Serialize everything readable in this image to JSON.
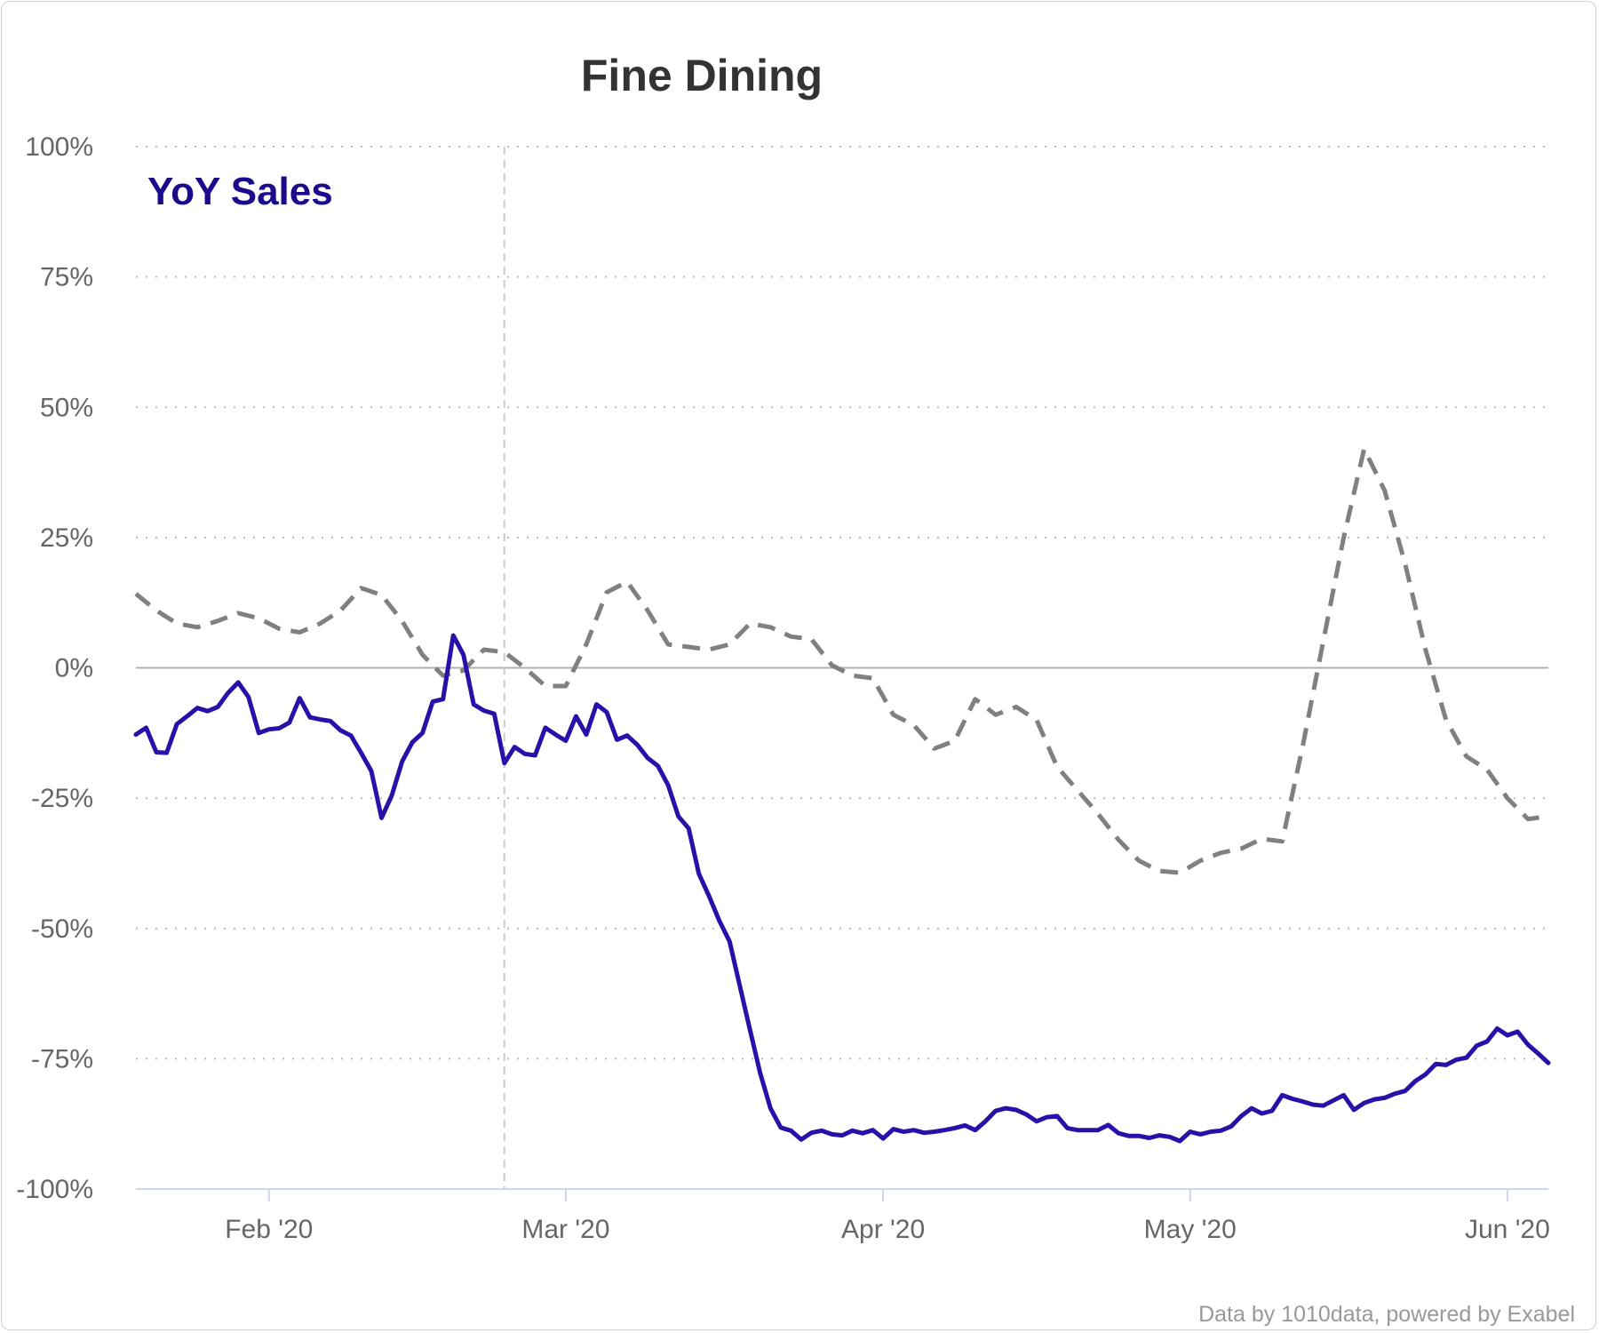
{
  "chart_data": {
    "type": "line",
    "title": "Fine Dining",
    "annotation": "YoY Sales",
    "credit": "Data by 1010data, powered by Exabel",
    "ylim": [
      -100,
      100
    ],
    "yticks": [
      100,
      75,
      50,
      25,
      0,
      -25,
      -50,
      -75,
      -100
    ],
    "ytick_labels": [
      "100%",
      "75%",
      "50%",
      "25%",
      "0%",
      "-25%",
      "-50%",
      "-75%",
      "-100%"
    ],
    "xticks": [
      "2020-02-01",
      "2020-03-01",
      "2020-04-01",
      "2020-05-01",
      "2020-06-01"
    ],
    "xtick_labels": [
      "Feb '20",
      "Mar '20",
      "Apr '20",
      "May '20",
      "Jun '20"
    ],
    "xlim": [
      "2020-01-19",
      "2020-06-05"
    ],
    "grid": "horizontal dotted",
    "reference_line_date": "2020-02-24",
    "colors": {
      "series_primary": "#2a0fa8",
      "series_secondary": "#808080",
      "grid": "#bbbbbb",
      "zero_line": "#b0b0b0",
      "reference_line": "#cccccc",
      "axis": "#ccd6eb",
      "label_color": "#1a0a8c"
    },
    "series": [
      {
        "style": "solid",
        "points": [
          [
            "2020-01-19",
            -12.8
          ],
          [
            "2020-01-20",
            -11.5
          ],
          [
            "2020-01-21",
            -16.2
          ],
          [
            "2020-01-22",
            -16.3
          ],
          [
            "2020-01-23",
            -10.8
          ],
          [
            "2020-01-24",
            -9.3
          ],
          [
            "2020-01-25",
            -7.7
          ],
          [
            "2020-01-26",
            -8.3
          ],
          [
            "2020-01-27",
            -7.5
          ],
          [
            "2020-01-28",
            -4.8
          ],
          [
            "2020-01-29",
            -2.8
          ],
          [
            "2020-01-30",
            -5.6
          ],
          [
            "2020-01-31",
            -12.5
          ],
          [
            "2020-02-01",
            -11.8
          ],
          [
            "2020-02-02",
            -11.6
          ],
          [
            "2020-02-03",
            -10.5
          ],
          [
            "2020-02-04",
            -5.8
          ],
          [
            "2020-02-05",
            -9.5
          ],
          [
            "2020-02-06",
            -9.9
          ],
          [
            "2020-02-07",
            -10.2
          ],
          [
            "2020-02-08",
            -12
          ],
          [
            "2020-02-09",
            -13
          ],
          [
            "2020-02-10",
            -16.3
          ],
          [
            "2020-02-11",
            -19.8
          ],
          [
            "2020-02-12",
            -28.8
          ],
          [
            "2020-02-13",
            -24.5
          ],
          [
            "2020-02-14",
            -18
          ],
          [
            "2020-02-15",
            -14.3
          ],
          [
            "2020-02-16",
            -12.5
          ],
          [
            "2020-02-17",
            -6.5
          ],
          [
            "2020-02-18",
            -6
          ],
          [
            "2020-02-19",
            6.2
          ],
          [
            "2020-02-20",
            2.5
          ],
          [
            "2020-02-21",
            -7
          ],
          [
            "2020-02-22",
            -8.2
          ],
          [
            "2020-02-23",
            -8.8
          ],
          [
            "2020-02-24",
            -18.3
          ],
          [
            "2020-02-25",
            -15.2
          ],
          [
            "2020-02-26",
            -16.5
          ],
          [
            "2020-02-27",
            -16.8
          ],
          [
            "2020-02-28",
            -11.5
          ],
          [
            "2020-02-29",
            -12.8
          ],
          [
            "2020-03-01",
            -14
          ],
          [
            "2020-03-02",
            -9.3
          ],
          [
            "2020-03-03",
            -12.8
          ],
          [
            "2020-03-04",
            -7
          ],
          [
            "2020-03-05",
            -8.5
          ],
          [
            "2020-03-06",
            -13.8
          ],
          [
            "2020-03-07",
            -13
          ],
          [
            "2020-03-08",
            -14.8
          ],
          [
            "2020-03-09",
            -17.3
          ],
          [
            "2020-03-10",
            -18.8
          ],
          [
            "2020-03-11",
            -22.5
          ],
          [
            "2020-03-12",
            -28.5
          ],
          [
            "2020-03-13",
            -30.8
          ],
          [
            "2020-03-14",
            -39.5
          ],
          [
            "2020-03-15",
            -43.8
          ],
          [
            "2020-03-16",
            -48.5
          ],
          [
            "2020-03-17",
            -52.5
          ],
          [
            "2020-03-18",
            -61
          ],
          [
            "2020-03-19",
            -69.5
          ],
          [
            "2020-03-20",
            -77.8
          ],
          [
            "2020-03-21",
            -84.5
          ],
          [
            "2020-03-22",
            -88.2
          ],
          [
            "2020-03-23",
            -88.8
          ],
          [
            "2020-03-24",
            -90.5
          ],
          [
            "2020-03-25",
            -89.2
          ],
          [
            "2020-03-26",
            -88.8
          ],
          [
            "2020-03-27",
            -89.5
          ],
          [
            "2020-03-28",
            -89.7
          ],
          [
            "2020-03-29",
            -88.8
          ],
          [
            "2020-03-30",
            -89.3
          ],
          [
            "2020-03-31",
            -88.7
          ],
          [
            "2020-04-01",
            -90.3
          ],
          [
            "2020-04-02",
            -88.5
          ],
          [
            "2020-04-03",
            -89
          ],
          [
            "2020-04-04",
            -88.7
          ],
          [
            "2020-04-05",
            -89.2
          ],
          [
            "2020-04-06",
            -89
          ],
          [
            "2020-04-07",
            -88.7
          ],
          [
            "2020-04-08",
            -88.3
          ],
          [
            "2020-04-09",
            -87.8
          ],
          [
            "2020-04-10",
            -88.7
          ],
          [
            "2020-04-11",
            -87
          ],
          [
            "2020-04-12",
            -85
          ],
          [
            "2020-04-13",
            -84.5
          ],
          [
            "2020-04-14",
            -84.8
          ],
          [
            "2020-04-15",
            -85.7
          ],
          [
            "2020-04-16",
            -87
          ],
          [
            "2020-04-17",
            -86.2
          ],
          [
            "2020-04-18",
            -86
          ],
          [
            "2020-04-19",
            -88.3
          ],
          [
            "2020-04-20",
            -88.7
          ],
          [
            "2020-04-21",
            -88.7
          ],
          [
            "2020-04-22",
            -88.7
          ],
          [
            "2020-04-23",
            -87.7
          ],
          [
            "2020-04-24",
            -89.3
          ],
          [
            "2020-04-25",
            -89.8
          ],
          [
            "2020-04-26",
            -89.8
          ],
          [
            "2020-04-27",
            -90.2
          ],
          [
            "2020-04-28",
            -89.7
          ],
          [
            "2020-04-29",
            -90
          ],
          [
            "2020-04-30",
            -90.8
          ],
          [
            "2020-05-01",
            -89
          ],
          [
            "2020-05-02",
            -89.5
          ],
          [
            "2020-05-03",
            -89
          ],
          [
            "2020-05-04",
            -88.8
          ],
          [
            "2020-05-05",
            -88
          ],
          [
            "2020-05-06",
            -86
          ],
          [
            "2020-05-07",
            -84.5
          ],
          [
            "2020-05-08",
            -85.5
          ],
          [
            "2020-05-09",
            -85
          ],
          [
            "2020-05-10",
            -82
          ],
          [
            "2020-05-11",
            -82.7
          ],
          [
            "2020-05-12",
            -83.2
          ],
          [
            "2020-05-13",
            -83.8
          ],
          [
            "2020-05-14",
            -84
          ],
          [
            "2020-05-15",
            -83
          ],
          [
            "2020-05-16",
            -82
          ],
          [
            "2020-05-17",
            -84.8
          ],
          [
            "2020-05-18",
            -83.5
          ],
          [
            "2020-05-19",
            -82.8
          ],
          [
            "2020-05-20",
            -82.5
          ],
          [
            "2020-05-21",
            -81.7
          ],
          [
            "2020-05-22",
            -81.2
          ],
          [
            "2020-05-23",
            -79.3
          ],
          [
            "2020-05-24",
            -78
          ],
          [
            "2020-05-25",
            -76
          ],
          [
            "2020-05-26",
            -76.2
          ],
          [
            "2020-05-27",
            -75.2
          ],
          [
            "2020-05-28",
            -74.8
          ],
          [
            "2020-05-29",
            -72.5
          ],
          [
            "2020-05-30",
            -71.7
          ],
          [
            "2020-05-31",
            -69.2
          ],
          [
            "2020-06-01",
            -70.5
          ],
          [
            "2020-06-02",
            -69.8
          ],
          [
            "2020-06-03",
            -72.3
          ],
          [
            "2020-06-04",
            -74
          ],
          [
            "2020-06-05",
            -75.8
          ]
        ]
      },
      {
        "style": "dashed",
        "points": [
          [
            "2020-01-19",
            14.2
          ],
          [
            "2020-01-21",
            11
          ],
          [
            "2020-01-23",
            8.5
          ],
          [
            "2020-01-25",
            7.8
          ],
          [
            "2020-01-27",
            9
          ],
          [
            "2020-01-29",
            10.5
          ],
          [
            "2020-01-31",
            9.5
          ],
          [
            "2020-02-02",
            7.5
          ],
          [
            "2020-02-04",
            6.8
          ],
          [
            "2020-02-06",
            8.5
          ],
          [
            "2020-02-08",
            11
          ],
          [
            "2020-02-10",
            15.3
          ],
          [
            "2020-02-12",
            14
          ],
          [
            "2020-02-14",
            9
          ],
          [
            "2020-02-16",
            2.5
          ],
          [
            "2020-02-18",
            -1.5
          ],
          [
            "2020-02-20",
            -0.5
          ],
          [
            "2020-02-22",
            3.5
          ],
          [
            "2020-02-24",
            3
          ],
          [
            "2020-02-26",
            0
          ],
          [
            "2020-02-28",
            -3.5
          ],
          [
            "2020-03-01",
            -3.5
          ],
          [
            "2020-03-03",
            4.5
          ],
          [
            "2020-03-05",
            14.5
          ],
          [
            "2020-03-07",
            16.5
          ],
          [
            "2020-03-09",
            11
          ],
          [
            "2020-03-11",
            4.5
          ],
          [
            "2020-03-13",
            4
          ],
          [
            "2020-03-15",
            3.5
          ],
          [
            "2020-03-17",
            4.5
          ],
          [
            "2020-03-19",
            8.5
          ],
          [
            "2020-03-21",
            7.8
          ],
          [
            "2020-03-23",
            6
          ],
          [
            "2020-03-25",
            5.5
          ],
          [
            "2020-03-27",
            0.5
          ],
          [
            "2020-03-29",
            -1.5
          ],
          [
            "2020-03-31",
            -2
          ],
          [
            "2020-04-02",
            -9
          ],
          [
            "2020-04-04",
            -11
          ],
          [
            "2020-04-06",
            -15.5
          ],
          [
            "2020-04-08",
            -14
          ],
          [
            "2020-04-10",
            -6
          ],
          [
            "2020-04-12",
            -9
          ],
          [
            "2020-04-14",
            -7.5
          ],
          [
            "2020-04-16",
            -10
          ],
          [
            "2020-04-18",
            -19
          ],
          [
            "2020-04-20",
            -23.5
          ],
          [
            "2020-04-22",
            -28
          ],
          [
            "2020-04-24",
            -33
          ],
          [
            "2020-04-26",
            -37
          ],
          [
            "2020-04-28",
            -39
          ],
          [
            "2020-04-30",
            -39.3
          ],
          [
            "2020-05-02",
            -37
          ],
          [
            "2020-05-04",
            -35.5
          ],
          [
            "2020-05-06",
            -34.7
          ],
          [
            "2020-05-08",
            -32.8
          ],
          [
            "2020-05-10",
            -33.3
          ],
          [
            "2020-05-12",
            -15
          ],
          [
            "2020-05-14",
            5
          ],
          [
            "2020-05-16",
            25
          ],
          [
            "2020-05-18",
            42
          ],
          [
            "2020-05-20",
            34
          ],
          [
            "2020-05-22",
            20
          ],
          [
            "2020-05-24",
            3.5
          ],
          [
            "2020-05-26",
            -10
          ],
          [
            "2020-05-28",
            -17
          ],
          [
            "2020-05-30",
            -19.5
          ],
          [
            "2020-06-01",
            -25
          ],
          [
            "2020-06-03",
            -29
          ],
          [
            "2020-06-05",
            -28.5
          ]
        ]
      }
    ]
  }
}
